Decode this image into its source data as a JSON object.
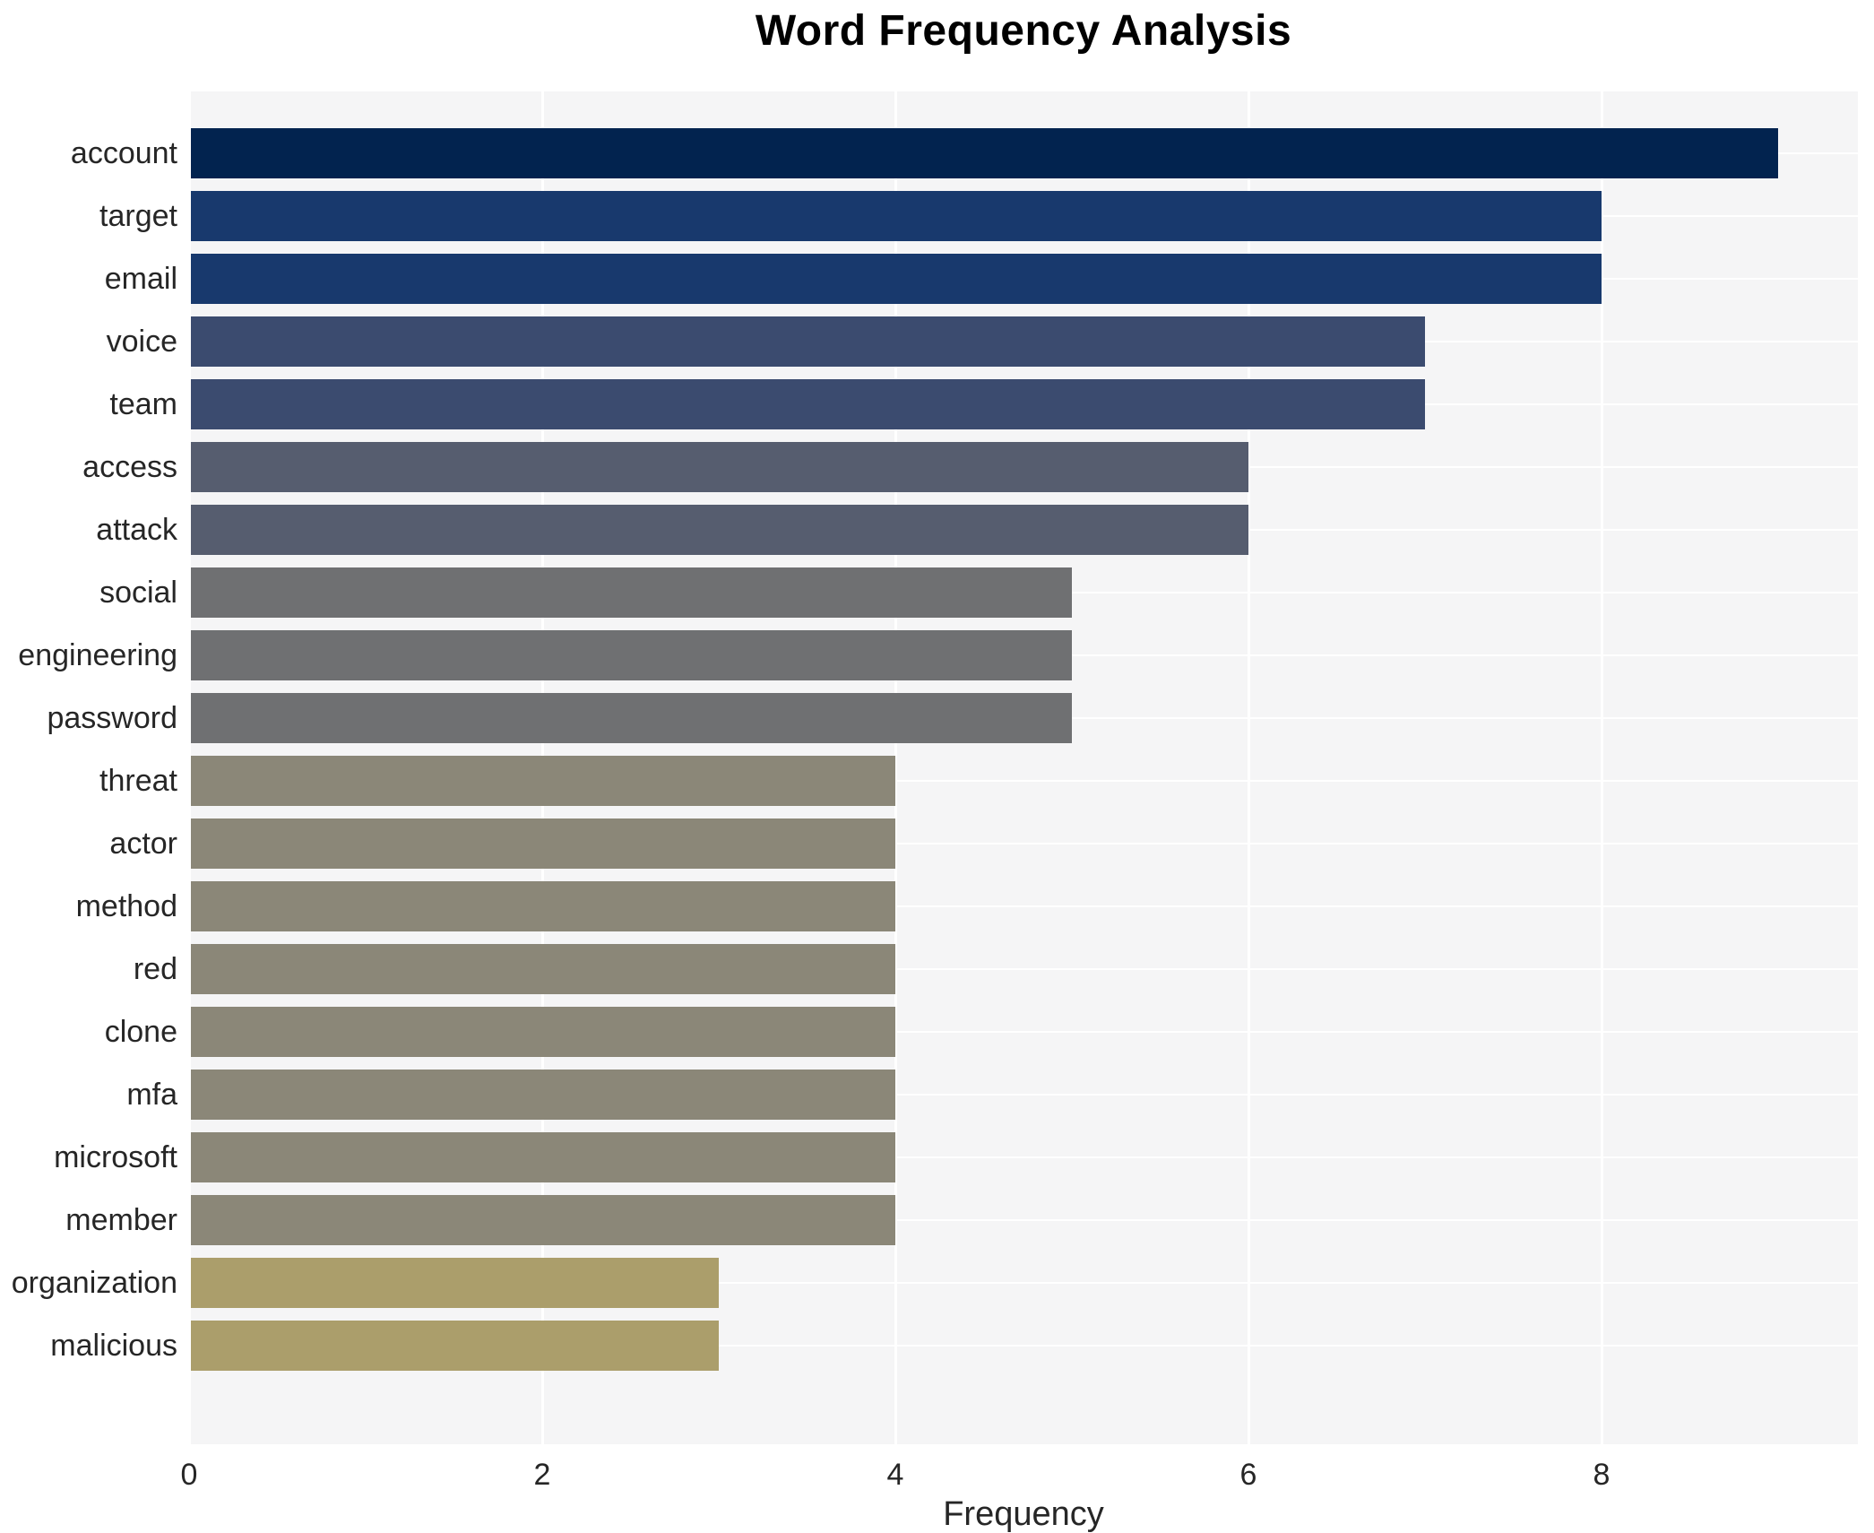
{
  "chart_data": {
    "type": "bar",
    "orientation": "horizontal",
    "title": "Word Frequency Analysis",
    "xlabel": "Frequency",
    "ylabel": "",
    "categories": [
      "account",
      "target",
      "email",
      "voice",
      "team",
      "access",
      "attack",
      "social",
      "engineering",
      "password",
      "threat",
      "actor",
      "method",
      "red",
      "clone",
      "mfa",
      "microsoft",
      "member",
      "organization",
      "malicious"
    ],
    "values": [
      9,
      8,
      8,
      7,
      7,
      6,
      6,
      5,
      5,
      5,
      4,
      4,
      4,
      4,
      4,
      4,
      4,
      4,
      3,
      3
    ],
    "bar_colors": [
      "#02234f",
      "#18396d",
      "#18396d",
      "#3b4b6f",
      "#3b4b6f",
      "#565d6f",
      "#565d6f",
      "#6f7072",
      "#6f7072",
      "#6f7072",
      "#8b8778",
      "#8b8778",
      "#8b8778",
      "#8b8778",
      "#8b8778",
      "#8b8778",
      "#8b8778",
      "#8b8778",
      "#ab9e6b",
      "#ab9e6b"
    ],
    "palette_by_value": {
      "9": "#02234f",
      "8": "#18396d",
      "7": "#3b4b6f",
      "6": "#565d6f",
      "5": "#6f7072",
      "4": "#8b8778",
      "3": "#ab9e6b"
    },
    "colormap": "cividis (dark navy = most frequent, khaki = least frequent)",
    "xlim": [
      0,
      9.45
    ],
    "xticks": [
      0,
      2,
      4,
      6,
      8
    ],
    "grid": true,
    "grid_color": "#ffffff",
    "plot_background": "#f5f5f6",
    "figure_background": "#ffffff",
    "text_color": "#262626",
    "title_color": "#000000",
    "legend": false
  }
}
